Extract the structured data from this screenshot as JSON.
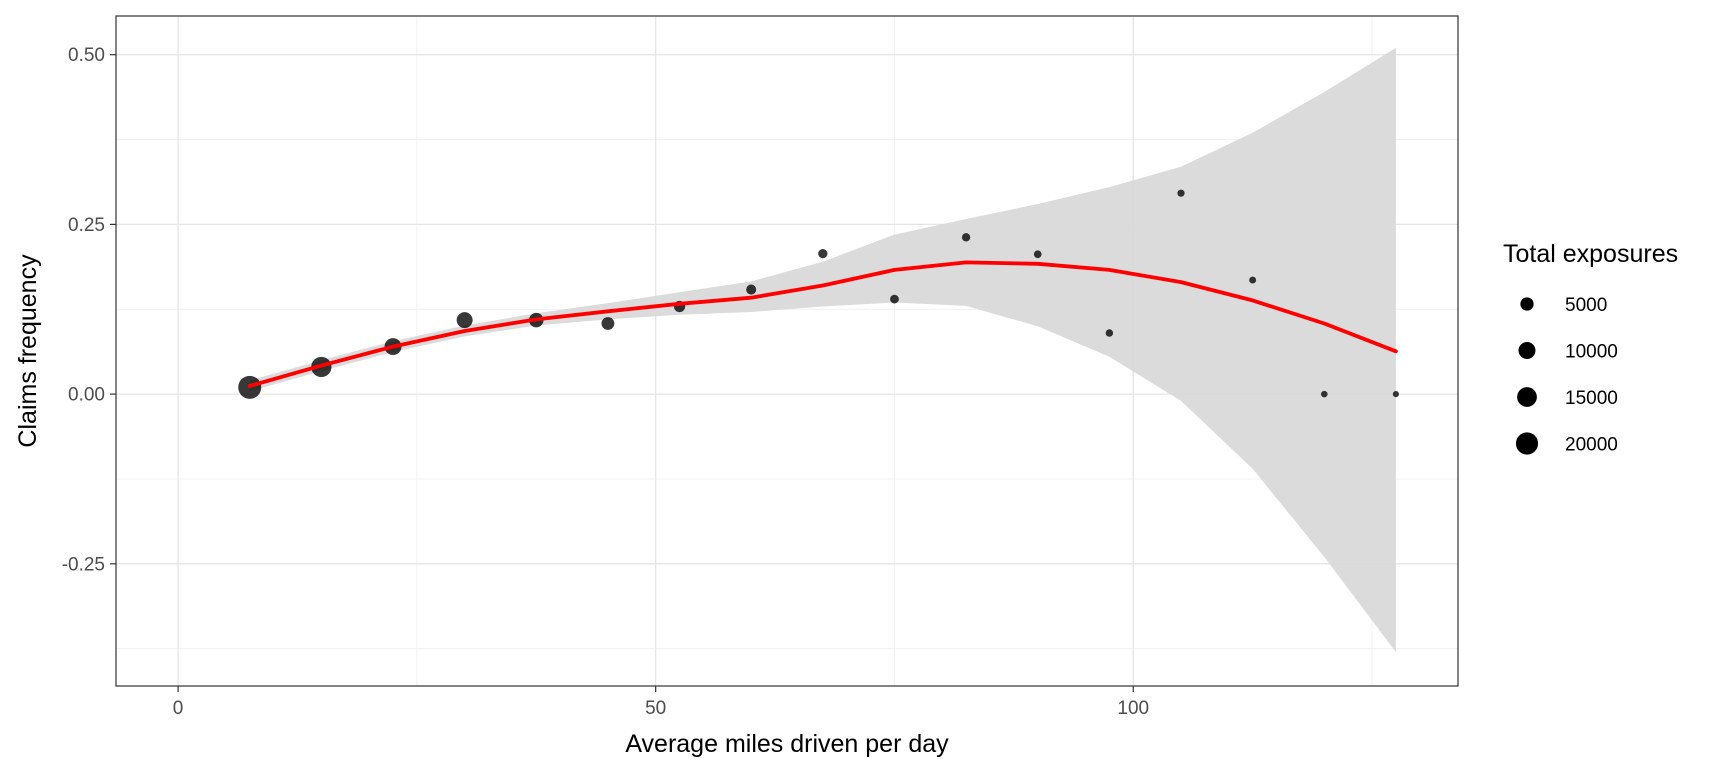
{
  "chart_data": {
    "type": "scatter",
    "title": "",
    "xlabel": "Average miles driven per day",
    "ylabel": "Claims frequency",
    "xlim": [
      -6.5,
      134
    ],
    "ylim": [
      -0.43,
      0.557
    ],
    "x_ticks": [
      {
        "value": 0,
        "label": "0"
      },
      {
        "value": 50,
        "label": "50"
      },
      {
        "value": 100,
        "label": "100"
      }
    ],
    "y_ticks": [
      {
        "value": -0.25,
        "label": "-0.25"
      },
      {
        "value": 0,
        "label": "0.00"
      },
      {
        "value": 0.25,
        "label": "0.25"
      },
      {
        "value": 0.5,
        "label": "0.50"
      }
    ],
    "grid": true,
    "legend": {
      "title": "Total exposures",
      "position": "right",
      "entries": [
        {
          "label": "5000",
          "value": 5000
        },
        {
          "label": "10000",
          "value": 10000
        },
        {
          "label": "15000",
          "value": 15000
        },
        {
          "label": "20000",
          "value": 20000
        }
      ]
    },
    "points": [
      {
        "x": 7.5,
        "y": 0.01,
        "size": 22000
      },
      {
        "x": 15,
        "y": 0.04,
        "size": 16000
      },
      {
        "x": 22.5,
        "y": 0.07,
        "size": 10000
      },
      {
        "x": 30,
        "y": 0.109,
        "size": 8500
      },
      {
        "x": 37.5,
        "y": 0.109,
        "size": 6500
      },
      {
        "x": 45,
        "y": 0.104,
        "size": 4500
      },
      {
        "x": 52.5,
        "y": 0.129,
        "size": 3000
      },
      {
        "x": 60,
        "y": 0.154,
        "size": 2000
      },
      {
        "x": 67.5,
        "y": 0.207,
        "size": 1500
      },
      {
        "x": 75,
        "y": 0.14,
        "size": 1200
      },
      {
        "x": 82.5,
        "y": 0.231,
        "size": 1000
      },
      {
        "x": 90,
        "y": 0.206,
        "size": 700
      },
      {
        "x": 97.5,
        "y": 0.09,
        "size": 600
      },
      {
        "x": 105,
        "y": 0.296,
        "size": 500
      },
      {
        "x": 112.5,
        "y": 0.168,
        "size": 400
      },
      {
        "x": 120,
        "y": 0.0,
        "size": 300
      },
      {
        "x": 127.5,
        "y": 0.0,
        "size": 200
      }
    ],
    "smooth": {
      "color": "#ff0000",
      "band_color": "#d9d9d9",
      "x": [
        7.5,
        15,
        22.5,
        30,
        37.5,
        45,
        52.5,
        60,
        67.5,
        75,
        82.5,
        90,
        97.5,
        105,
        112.5,
        120,
        127.5
      ],
      "y": [
        0.012,
        0.042,
        0.07,
        0.093,
        0.11,
        0.122,
        0.133,
        0.142,
        0.16,
        0.183,
        0.194,
        0.192,
        0.183,
        0.165,
        0.138,
        0.104,
        0.063
      ],
      "lower": [
        0.004,
        0.034,
        0.062,
        0.085,
        0.101,
        0.11,
        0.117,
        0.121,
        0.129,
        0.135,
        0.13,
        0.1,
        0.055,
        -0.01,
        -0.11,
        -0.24,
        -0.38
      ],
      "upper": [
        0.02,
        0.05,
        0.078,
        0.101,
        0.119,
        0.134,
        0.15,
        0.166,
        0.195,
        0.235,
        0.258,
        0.28,
        0.305,
        0.335,
        0.385,
        0.445,
        0.51
      ]
    }
  }
}
